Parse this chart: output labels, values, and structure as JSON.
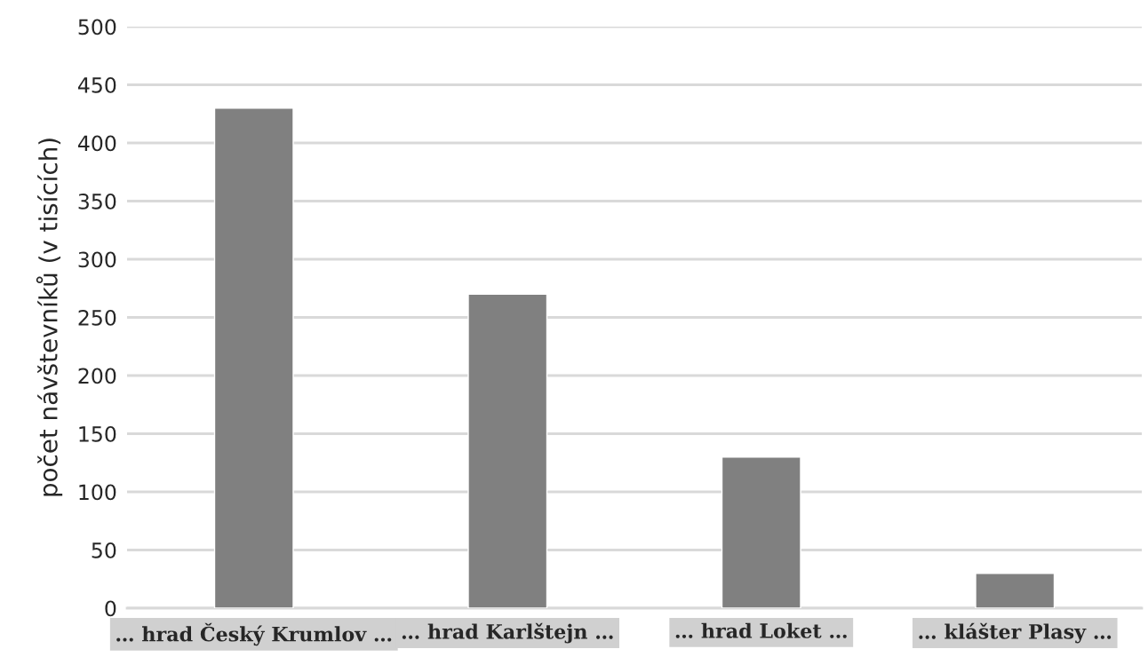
{
  "chart_data": {
    "type": "bar",
    "ylabel": "počet návštevníků (v tisících)",
    "categories": [
      "… hrad Český Krumlov …",
      "… hrad Karlštejn …",
      "… hrad Loket …",
      "… klášter Plasy …"
    ],
    "values": [
      430,
      270,
      130,
      30
    ],
    "color": "#808080",
    "ylim": [
      0,
      500
    ],
    "yticks": [
      0,
      50,
      100,
      150,
      200,
      250,
      300,
      350,
      400,
      450,
      500
    ],
    "grid": "y"
  }
}
